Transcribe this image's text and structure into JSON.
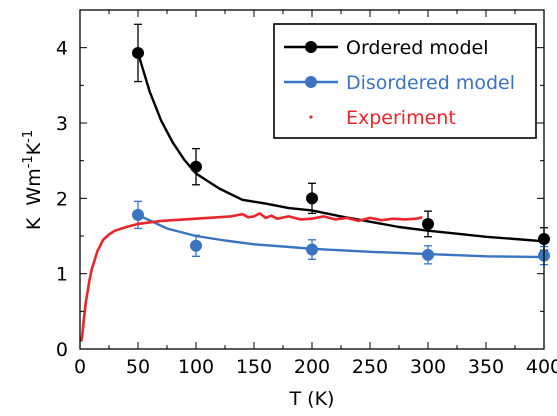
{
  "chart_data": {
    "type": "scatter",
    "xlabel": "T (K)",
    "ylabel": "K  Wm⁻¹K⁻¹",
    "ylabel_parts": [
      "K  Wm",
      "-1",
      "K",
      "-1"
    ],
    "xlim": [
      0,
      400
    ],
    "ylim": [
      0,
      4.5
    ],
    "x_ticks": [
      0,
      50,
      100,
      150,
      200,
      250,
      300,
      350,
      400
    ],
    "y_ticks": [
      0,
      1,
      2,
      3,
      4
    ],
    "x_tick_labels": [
      "0",
      "50",
      "100",
      "150",
      "200",
      "250",
      "300",
      "350",
      "400"
    ],
    "y_tick_labels": [
      "0",
      "1",
      "2",
      "3",
      "4"
    ],
    "grid": false,
    "legend_position": "top-right",
    "series": [
      {
        "name": "Ordered model",
        "color": "#000000",
        "kind": "markers-with-fit",
        "x": [
          50,
          100,
          200,
          300,
          400
        ],
        "y": [
          3.93,
          2.42,
          2.0,
          1.66,
          1.46
        ],
        "yerr": [
          0.38,
          0.24,
          0.2,
          0.17,
          0.15
        ],
        "fit": {
          "x": [
            50,
            60,
            70,
            80,
            90,
            100,
            120,
            140,
            160,
            180,
            200,
            225,
            250,
            275,
            300,
            325,
            350,
            375,
            400
          ],
          "y": [
            3.93,
            3.42,
            3.03,
            2.74,
            2.51,
            2.33,
            2.13,
            1.98,
            1.93,
            1.87,
            1.84,
            1.76,
            1.69,
            1.62,
            1.57,
            1.53,
            1.49,
            1.46,
            1.43
          ]
        }
      },
      {
        "name": "Disordered model",
        "color": "#3a73bf",
        "kind": "markers-with-fit",
        "x": [
          50,
          100,
          200,
          300,
          400
        ],
        "y": [
          1.78,
          1.37,
          1.32,
          1.25,
          1.24
        ],
        "yerr": [
          0.18,
          0.14,
          0.13,
          0.12,
          0.12
        ],
        "fit": {
          "x": [
            50,
            75,
            100,
            125,
            150,
            175,
            200,
            250,
            300,
            350,
            400
          ],
          "y": [
            1.78,
            1.6,
            1.5,
            1.44,
            1.39,
            1.36,
            1.33,
            1.29,
            1.26,
            1.23,
            1.22
          ]
        }
      },
      {
        "name": "Experiment",
        "color": "#e8262b",
        "kind": "line",
        "x": [
          1,
          2,
          3,
          5,
          8,
          10,
          15,
          20,
          25,
          30,
          40,
          50,
          60,
          70,
          80,
          90,
          100,
          110,
          120,
          130,
          140,
          145,
          150,
          155,
          160,
          165,
          170,
          180,
          190,
          200,
          210,
          220,
          230,
          240,
          250,
          260,
          270,
          280,
          290,
          295
        ],
        "y": [
          0.1,
          0.18,
          0.35,
          0.62,
          0.9,
          1.05,
          1.3,
          1.45,
          1.52,
          1.57,
          1.62,
          1.66,
          1.68,
          1.7,
          1.71,
          1.72,
          1.73,
          1.74,
          1.75,
          1.76,
          1.79,
          1.75,
          1.76,
          1.8,
          1.74,
          1.77,
          1.73,
          1.76,
          1.72,
          1.73,
          1.76,
          1.72,
          1.74,
          1.7,
          1.74,
          1.71,
          1.73,
          1.72,
          1.73,
          1.75
        ]
      }
    ]
  }
}
